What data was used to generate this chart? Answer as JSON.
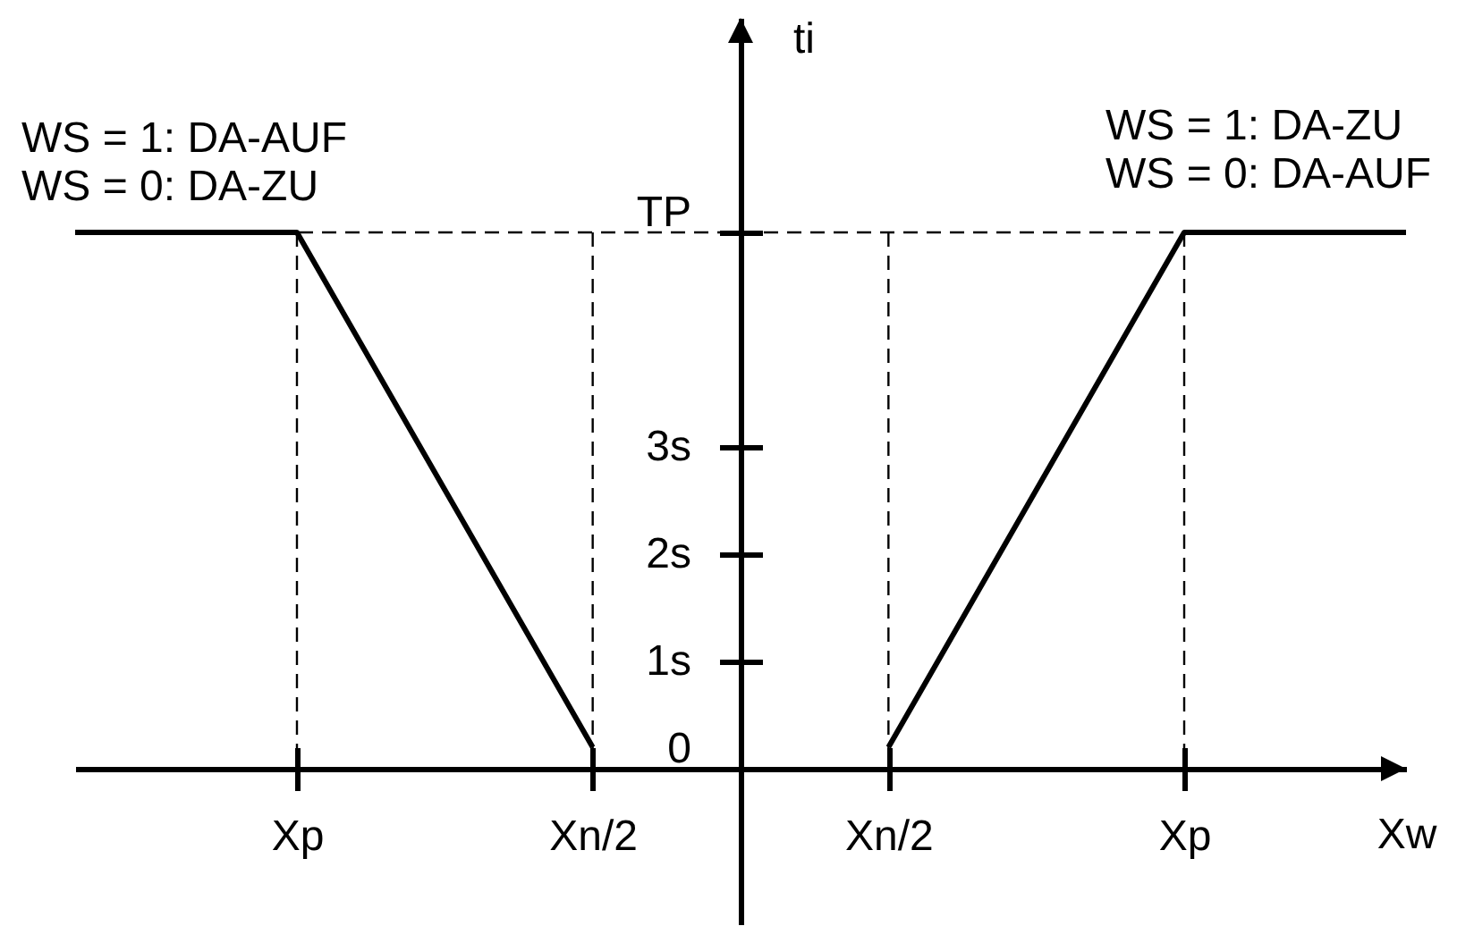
{
  "chart_data": {
    "type": "line",
    "xlabel": "Xw",
    "ylabel": "ti",
    "annotations": [
      "WS = 1: DA-AUF",
      "WS = 0: DA-ZU",
      "WS = 1: DA-ZU",
      "WS = 0: DA-AUF"
    ],
    "categories": [
      null,
      null,
      null,
      "Xp",
      null,
      null,
      null,
      "Xn/2",
      null,
      null,
      null,
      "Xn/2",
      null,
      null,
      null,
      "Xp",
      null,
      null,
      null
    ],
    "series": [
      {
        "color": "#000000",
        "values": [
          5,
          5,
          5,
          5,
          3.8,
          2.6,
          1.4,
          0.2,
          null,
          null,
          null,
          null,
          null,
          null,
          null,
          null,
          null,
          null,
          null
        ]
      },
      {
        "color": "#000000",
        "values": [
          null,
          null,
          null,
          null,
          null,
          null,
          null,
          null,
          null,
          null,
          null,
          0.2,
          1.4,
          2.6,
          3.8,
          5,
          5,
          5,
          5
        ]
      }
    ],
    "ylim": [
      -1.45,
      7
    ],
    "yticks": [
      0,
      {
        "value": 1,
        "label": "1s"
      },
      {
        "value": 2,
        "label": "2s"
      },
      {
        "value": 3,
        "label": "3s"
      },
      {
        "value": 5,
        "label": "TP"
      }
    ],
    "ref_lines": [
      {
        "axis": "y",
        "value": 5,
        "color": "#000000",
        "line_style": "dashed"
      },
      {
        "axis": "x",
        "value": "Xp",
        "color": "#000000",
        "line_style": "dashed"
      },
      {
        "axis": "x",
        "value": "Xn/2",
        "color": "#000000",
        "line_style": "dashed"
      }
    ]
  }
}
